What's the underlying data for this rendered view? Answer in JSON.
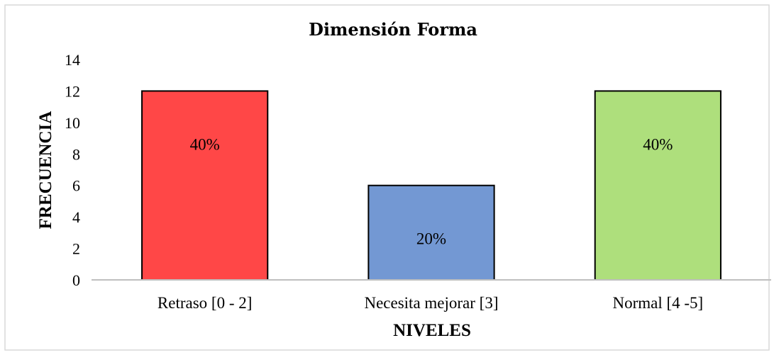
{
  "chart_data": {
    "type": "bar",
    "title": "Dimensión Forma",
    "xlabel": "NIVELES",
    "ylabel": "FRECUENCIA",
    "categories": [
      "Retraso [0 - 2]",
      "Necesita mejorar [3]",
      "Normal [4 -5]"
    ],
    "values": [
      12,
      6,
      12
    ],
    "data_labels": [
      "40%",
      "20%",
      "40%"
    ],
    "colors": [
      "#ff4747",
      "#7398d3",
      "#aedf7c"
    ],
    "ylim": [
      0,
      14
    ],
    "yticks": [
      "0",
      "2",
      "4",
      "6",
      "8",
      "10",
      "12",
      "14"
    ],
    "grid": false,
    "legend": "none"
  }
}
